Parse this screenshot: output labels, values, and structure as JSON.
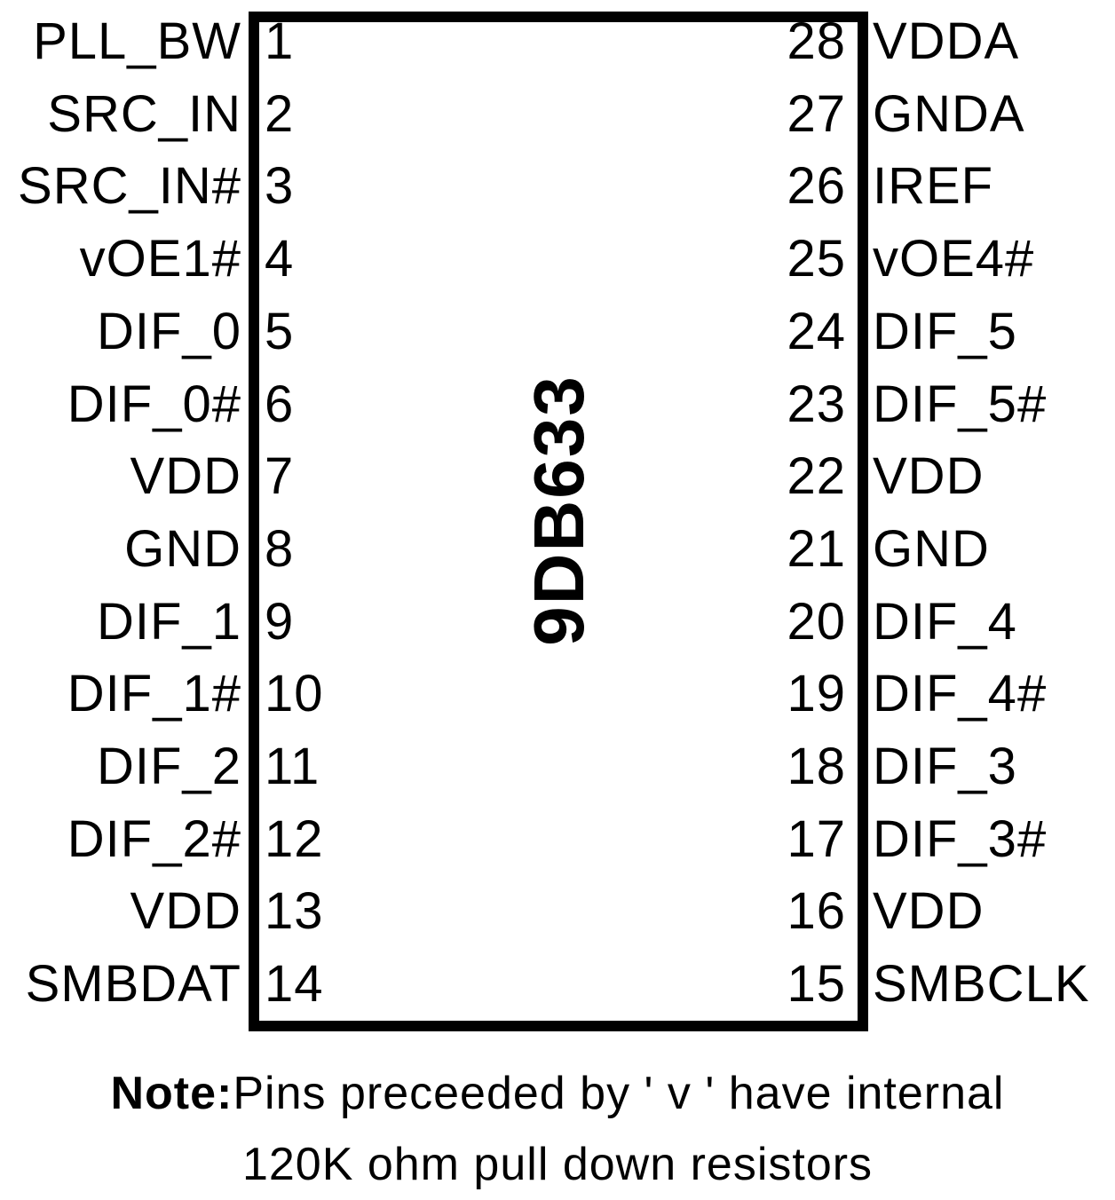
{
  "part_number": "9DB633",
  "left_pins": [
    {
      "num": "1",
      "name": "PLL_BW"
    },
    {
      "num": "2",
      "name": "SRC_IN"
    },
    {
      "num": "3",
      "name": "SRC_IN#"
    },
    {
      "num": "4",
      "name": "vOE1#"
    },
    {
      "num": "5",
      "name": "DIF_0"
    },
    {
      "num": "6",
      "name": "DIF_0#"
    },
    {
      "num": "7",
      "name": "VDD"
    },
    {
      "num": "8",
      "name": "GND"
    },
    {
      "num": "9",
      "name": "DIF_1"
    },
    {
      "num": "10",
      "name": "DIF_1#"
    },
    {
      "num": "11",
      "name": "DIF_2"
    },
    {
      "num": "12",
      "name": "DIF_2#"
    },
    {
      "num": "13",
      "name": "VDD"
    },
    {
      "num": "14",
      "name": "SMBDAT"
    }
  ],
  "right_pins": [
    {
      "num": "28",
      "name": "VDDA"
    },
    {
      "num": "27",
      "name": "GNDA"
    },
    {
      "num": "26",
      "name": "IREF"
    },
    {
      "num": "25",
      "name": "vOE4#"
    },
    {
      "num": "24",
      "name": "DIF_5"
    },
    {
      "num": "23",
      "name": "DIF_5#"
    },
    {
      "num": "22",
      "name": "VDD"
    },
    {
      "num": "21",
      "name": "GND"
    },
    {
      "num": "20",
      "name": "DIF_4"
    },
    {
      "num": "19",
      "name": "DIF_4#"
    },
    {
      "num": "18",
      "name": "DIF_3"
    },
    {
      "num": "17",
      "name": "DIF_3#"
    },
    {
      "num": "16",
      "name": "VDD"
    },
    {
      "num": "15",
      "name": "SMBCLK"
    }
  ],
  "note": {
    "label": "Note:",
    "line1": "Pins preceeded by ' v ' have internal",
    "line2": "120K ohm pull down resistors"
  }
}
